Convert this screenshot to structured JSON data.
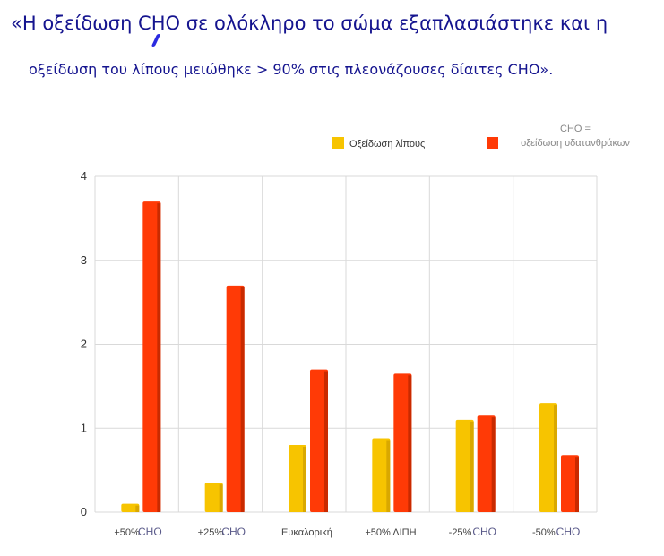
{
  "header": {
    "line1": "«Η οξείδωση CHO σε ολόκληρο το σώμα εξαπλασιάστηκε και η",
    "line2": "οξείδωση του λίπους μειώθηκε > 90% στις πλεονάζουσες δίαιτες CHO»."
  },
  "legend": {
    "fat": "Οξείδωση λίπους",
    "cho": "οξείδωση υδατανθράκων",
    "note": "CHO ="
  },
  "colors": {
    "fat": "#f7c400",
    "cho": "#ff3a06"
  },
  "chart_data": {
    "type": "bar",
    "categories": [
      {
        "main": "+50%",
        "sub": "CHO"
      },
      {
        "main": "+25%",
        "sub": "CHO"
      },
      {
        "main": "Ευκαλορική",
        "sub": ""
      },
      {
        "main": "+50% ΛΙΠΗ",
        "sub": ""
      },
      {
        "main": "-25%",
        "sub": "CHO"
      },
      {
        "main": "-50%",
        "sub": "CHO"
      }
    ],
    "series": [
      {
        "name": "Οξείδωση λίπους",
        "values": [
          0.1,
          0.35,
          0.8,
          0.88,
          1.1,
          1.3
        ]
      },
      {
        "name": "οξείδωση υδατανθράκων",
        "values": [
          3.7,
          2.7,
          1.7,
          1.65,
          1.15,
          0.68
        ]
      }
    ],
    "yticks": [
      "0",
      "1",
      "2",
      "3",
      "4"
    ],
    "ylim": [
      0,
      4
    ],
    "grid": true,
    "legend_position": "top-right"
  }
}
